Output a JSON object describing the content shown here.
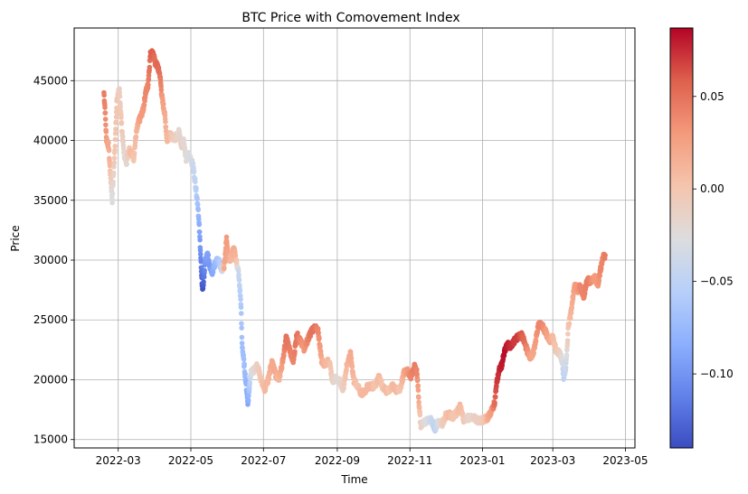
{
  "chart_data": {
    "type": "scatter",
    "title": "BTC Price with Comovement Index",
    "xlabel": "Time",
    "ylabel": "Price",
    "x_type": "date",
    "xlim": [
      "2022-01-23",
      "2023-05-09"
    ],
    "ylim": [
      14300,
      49400
    ],
    "grid": true,
    "x_ticks": [
      {
        "value": "2022-03-01",
        "label": "2022-03"
      },
      {
        "value": "2022-05-01",
        "label": "2022-05"
      },
      {
        "value": "2022-07-01",
        "label": "2022-07"
      },
      {
        "value": "2022-09-01",
        "label": "2022-09"
      },
      {
        "value": "2022-11-01",
        "label": "2022-11"
      },
      {
        "value": "2023-01-01",
        "label": "2023-01"
      },
      {
        "value": "2023-03-01",
        "label": "2023-03"
      },
      {
        "value": "2023-05-01",
        "label": "2023-05"
      }
    ],
    "y_ticks": [
      {
        "value": 15000,
        "label": "15000"
      },
      {
        "value": 20000,
        "label": "20000"
      },
      {
        "value": 25000,
        "label": "25000"
      },
      {
        "value": 30000,
        "label": "30000"
      },
      {
        "value": 35000,
        "label": "35000"
      },
      {
        "value": 40000,
        "label": "40000"
      },
      {
        "value": 45000,
        "label": "45000"
      }
    ],
    "colorbar": {
      "colormap": "coolwarm",
      "range": [
        -0.14,
        0.087
      ],
      "ticks": [
        {
          "value": 0.05,
          "label": "0.05"
        },
        {
          "value": 0.0,
          "label": "0.00"
        },
        {
          "value": -0.05,
          "label": "−0.05"
        },
        {
          "value": -0.1,
          "label": "−0.10"
        }
      ]
    },
    "points": [
      {
        "date": "2022-02-17",
        "price": 44000,
        "c": 0.045
      },
      {
        "date": "2022-02-18",
        "price": 42500,
        "c": 0.04
      },
      {
        "date": "2022-02-19",
        "price": 40200,
        "c": 0.03
      },
      {
        "date": "2022-02-21",
        "price": 39500,
        "c": 0.02
      },
      {
        "date": "2022-02-22",
        "price": 37800,
        "c": 0.01
      },
      {
        "date": "2022-02-24",
        "price": 35000,
        "c": -0.03
      },
      {
        "date": "2022-02-26",
        "price": 39000,
        "c": 0.0
      },
      {
        "date": "2022-02-28",
        "price": 43500,
        "c": 0.0
      },
      {
        "date": "2022-03-02",
        "price": 44200,
        "c": -0.01
      },
      {
        "date": "2022-03-04",
        "price": 41000,
        "c": 0.0
      },
      {
        "date": "2022-03-06",
        "price": 38800,
        "c": -0.02
      },
      {
        "date": "2022-03-08",
        "price": 38200,
        "c": -0.02
      },
      {
        "date": "2022-03-10",
        "price": 39300,
        "c": 0.0
      },
      {
        "date": "2022-03-12",
        "price": 39000,
        "c": 0.01
      },
      {
        "date": "2022-03-14",
        "price": 38500,
        "c": 0.0
      },
      {
        "date": "2022-03-16",
        "price": 40500,
        "c": 0.01
      },
      {
        "date": "2022-03-18",
        "price": 41500,
        "c": 0.02
      },
      {
        "date": "2022-03-20",
        "price": 42000,
        "c": 0.03
      },
      {
        "date": "2022-03-22",
        "price": 42600,
        "c": 0.03
      },
      {
        "date": "2022-03-24",
        "price": 44000,
        "c": 0.04
      },
      {
        "date": "2022-03-26",
        "price": 44600,
        "c": 0.04
      },
      {
        "date": "2022-03-28",
        "price": 47200,
        "c": 0.055
      },
      {
        "date": "2022-03-30",
        "price": 47400,
        "c": 0.06
      },
      {
        "date": "2022-04-01",
        "price": 46500,
        "c": 0.05
      },
      {
        "date": "2022-04-03",
        "price": 46200,
        "c": 0.055
      },
      {
        "date": "2022-04-05",
        "price": 45500,
        "c": 0.05
      },
      {
        "date": "2022-04-07",
        "price": 43400,
        "c": 0.03
      },
      {
        "date": "2022-04-09",
        "price": 42300,
        "c": 0.02
      },
      {
        "date": "2022-04-11",
        "price": 40000,
        "c": 0.01
      },
      {
        "date": "2022-04-13",
        "price": 40500,
        "c": 0.01
      },
      {
        "date": "2022-04-15",
        "price": 40300,
        "c": 0.0
      },
      {
        "date": "2022-04-18",
        "price": 40200,
        "c": -0.01
      },
      {
        "date": "2022-04-21",
        "price": 40800,
        "c": -0.02
      },
      {
        "date": "2022-04-23",
        "price": 39500,
        "c": -0.01
      },
      {
        "date": "2022-04-25",
        "price": 40000,
        "c": -0.02
      },
      {
        "date": "2022-04-27",
        "price": 38500,
        "c": -0.02
      },
      {
        "date": "2022-04-29",
        "price": 38800,
        "c": -0.03
      },
      {
        "date": "2022-05-01",
        "price": 38500,
        "c": -0.03
      },
      {
        "date": "2022-05-03",
        "price": 37800,
        "c": -0.04
      },
      {
        "date": "2022-05-05",
        "price": 36200,
        "c": -0.05
      },
      {
        "date": "2022-05-07",
        "price": 34500,
        "c": -0.07
      },
      {
        "date": "2022-05-09",
        "price": 31000,
        "c": -0.1
      },
      {
        "date": "2022-05-10",
        "price": 28500,
        "c": -0.12
      },
      {
        "date": "2022-05-11",
        "price": 27500,
        "c": -0.14
      },
      {
        "date": "2022-05-13",
        "price": 29800,
        "c": -0.1
      },
      {
        "date": "2022-05-15",
        "price": 30500,
        "c": -0.09
      },
      {
        "date": "2022-05-17",
        "price": 29500,
        "c": -0.1
      },
      {
        "date": "2022-05-19",
        "price": 29000,
        "c": -0.09
      },
      {
        "date": "2022-05-21",
        "price": 29600,
        "c": -0.08
      },
      {
        "date": "2022-05-23",
        "price": 30000,
        "c": -0.07
      },
      {
        "date": "2022-05-25",
        "price": 29800,
        "c": -0.06
      },
      {
        "date": "2022-05-27",
        "price": 29200,
        "c": -0.05
      },
      {
        "date": "2022-05-29",
        "price": 29500,
        "c": 0.02
      },
      {
        "date": "2022-05-31",
        "price": 31800,
        "c": 0.03
      },
      {
        "date": "2022-06-02",
        "price": 30000,
        "c": 0.02
      },
      {
        "date": "2022-06-04",
        "price": 30200,
        "c": 0.01
      },
      {
        "date": "2022-06-06",
        "price": 31000,
        "c": 0.02
      },
      {
        "date": "2022-06-08",
        "price": 30000,
        "c": 0.01
      },
      {
        "date": "2022-06-10",
        "price": 29000,
        "c": -0.04
      },
      {
        "date": "2022-06-12",
        "price": 26500,
        "c": -0.06
      },
      {
        "date": "2022-06-13",
        "price": 23000,
        "c": -0.07
      },
      {
        "date": "2022-06-15",
        "price": 21000,
        "c": -0.07
      },
      {
        "date": "2022-06-18",
        "price": 18000,
        "c": -0.09
      },
      {
        "date": "2022-06-20",
        "price": 20500,
        "c": -0.04
      },
      {
        "date": "2022-06-23",
        "price": 20800,
        "c": -0.02
      },
      {
        "date": "2022-06-26",
        "price": 21200,
        "c": -0.01
      },
      {
        "date": "2022-06-29",
        "price": 20000,
        "c": 0.0
      },
      {
        "date": "2022-07-02",
        "price": 19200,
        "c": 0.01
      },
      {
        "date": "2022-07-05",
        "price": 20000,
        "c": 0.01
      },
      {
        "date": "2022-07-08",
        "price": 21500,
        "c": 0.02
      },
      {
        "date": "2022-07-11",
        "price": 20500,
        "c": 0.02
      },
      {
        "date": "2022-07-14",
        "price": 20000,
        "c": 0.01
      },
      {
        "date": "2022-07-17",
        "price": 21500,
        "c": 0.03
      },
      {
        "date": "2022-07-20",
        "price": 23500,
        "c": 0.05
      },
      {
        "date": "2022-07-23",
        "price": 22500,
        "c": 0.045
      },
      {
        "date": "2022-07-26",
        "price": 21500,
        "c": 0.04
      },
      {
        "date": "2022-07-29",
        "price": 23800,
        "c": 0.05
      },
      {
        "date": "2022-08-01",
        "price": 23200,
        "c": 0.04
      },
      {
        "date": "2022-08-04",
        "price": 22600,
        "c": 0.03
      },
      {
        "date": "2022-08-07",
        "price": 23300,
        "c": 0.04
      },
      {
        "date": "2022-08-10",
        "price": 24000,
        "c": 0.05
      },
      {
        "date": "2022-08-13",
        "price": 24400,
        "c": 0.05
      },
      {
        "date": "2022-08-16",
        "price": 24000,
        "c": 0.04
      },
      {
        "date": "2022-08-19",
        "price": 21500,
        "c": 0.02
      },
      {
        "date": "2022-08-22",
        "price": 21300,
        "c": 0.01
      },
      {
        "date": "2022-08-25",
        "price": 21600,
        "c": 0.01
      },
      {
        "date": "2022-08-28",
        "price": 20000,
        "c": -0.01
      },
      {
        "date": "2022-08-31",
        "price": 20100,
        "c": -0.02
      },
      {
        "date": "2022-09-03",
        "price": 19900,
        "c": -0.02
      },
      {
        "date": "2022-09-06",
        "price": 19200,
        "c": -0.01
      },
      {
        "date": "2022-09-09",
        "price": 21200,
        "c": 0.01
      },
      {
        "date": "2022-09-12",
        "price": 22200,
        "c": 0.02
      },
      {
        "date": "2022-09-15",
        "price": 19900,
        "c": 0.01
      },
      {
        "date": "2022-09-18",
        "price": 19500,
        "c": 0.0
      },
      {
        "date": "2022-09-21",
        "price": 18800,
        "c": 0.01
      },
      {
        "date": "2022-09-24",
        "price": 19000,
        "c": 0.01
      },
      {
        "date": "2022-09-27",
        "price": 19500,
        "c": 0.01
      },
      {
        "date": "2022-09-30",
        "price": 19400,
        "c": 0.01
      },
      {
        "date": "2022-10-03",
        "price": 19600,
        "c": 0.0
      },
      {
        "date": "2022-10-06",
        "price": 20200,
        "c": 0.01
      },
      {
        "date": "2022-10-09",
        "price": 19400,
        "c": 0.0
      },
      {
        "date": "2022-10-12",
        "price": 19100,
        "c": 0.01
      },
      {
        "date": "2022-10-15",
        "price": 19200,
        "c": 0.0
      },
      {
        "date": "2022-10-18",
        "price": 19500,
        "c": 0.01
      },
      {
        "date": "2022-10-21",
        "price": 19100,
        "c": 0.01
      },
      {
        "date": "2022-10-24",
        "price": 19300,
        "c": 0.0
      },
      {
        "date": "2022-10-27",
        "price": 20600,
        "c": 0.02
      },
      {
        "date": "2022-10-30",
        "price": 20700,
        "c": 0.03
      },
      {
        "date": "2022-11-02",
        "price": 20300,
        "c": 0.04
      },
      {
        "date": "2022-11-05",
        "price": 21100,
        "c": 0.045
      },
      {
        "date": "2022-11-07",
        "price": 20600,
        "c": 0.04
      },
      {
        "date": "2022-11-09",
        "price": 17500,
        "c": 0.01
      },
      {
        "date": "2022-11-10",
        "price": 16200,
        "c": -0.01
      },
      {
        "date": "2022-11-13",
        "price": 16400,
        "c": -0.02
      },
      {
        "date": "2022-11-16",
        "price": 16700,
        "c": -0.03
      },
      {
        "date": "2022-11-19",
        "price": 16600,
        "c": -0.04
      },
      {
        "date": "2022-11-22",
        "price": 15900,
        "c": -0.05
      },
      {
        "date": "2022-11-25",
        "price": 16500,
        "c": -0.03
      },
      {
        "date": "2022-11-28",
        "price": 16300,
        "c": -0.01
      },
      {
        "date": "2022-12-01",
        "price": 17000,
        "c": 0.0
      },
      {
        "date": "2022-12-04",
        "price": 17100,
        "c": 0.01
      },
      {
        "date": "2022-12-07",
        "price": 16900,
        "c": 0.0
      },
      {
        "date": "2022-12-10",
        "price": 17200,
        "c": 0.0
      },
      {
        "date": "2022-12-13",
        "price": 17800,
        "c": 0.01
      },
      {
        "date": "2022-12-16",
        "price": 16700,
        "c": 0.0
      },
      {
        "date": "2022-12-19",
        "price": 16800,
        "c": -0.01
      },
      {
        "date": "2022-12-22",
        "price": 16800,
        "c": -0.02
      },
      {
        "date": "2022-12-25",
        "price": 16800,
        "c": -0.01
      },
      {
        "date": "2022-12-28",
        "price": 16600,
        "c": -0.01
      },
      {
        "date": "2022-12-31",
        "price": 16600,
        "c": -0.01
      },
      {
        "date": "2023-01-03",
        "price": 16700,
        "c": 0.0
      },
      {
        "date": "2023-01-06",
        "price": 16900,
        "c": 0.02
      },
      {
        "date": "2023-01-09",
        "price": 17500,
        "c": 0.03
      },
      {
        "date": "2023-01-11",
        "price": 18000,
        "c": 0.05
      },
      {
        "date": "2023-01-13",
        "price": 19800,
        "c": 0.07
      },
      {
        "date": "2023-01-15",
        "price": 20800,
        "c": 0.075
      },
      {
        "date": "2023-01-17",
        "price": 21200,
        "c": 0.08
      },
      {
        "date": "2023-01-20",
        "price": 22500,
        "c": 0.085
      },
      {
        "date": "2023-01-22",
        "price": 22900,
        "c": 0.08
      },
      {
        "date": "2023-01-25",
        "price": 22800,
        "c": 0.075
      },
      {
        "date": "2023-01-28",
        "price": 23300,
        "c": 0.07
      },
      {
        "date": "2023-01-31",
        "price": 23600,
        "c": 0.07
      },
      {
        "date": "2023-02-03",
        "price": 23700,
        "c": 0.06
      },
      {
        "date": "2023-02-06",
        "price": 22900,
        "c": 0.05
      },
      {
        "date": "2023-02-09",
        "price": 22000,
        "c": 0.03
      },
      {
        "date": "2023-02-12",
        "price": 21900,
        "c": 0.02
      },
      {
        "date": "2023-02-15",
        "price": 23500,
        "c": 0.03
      },
      {
        "date": "2023-02-17",
        "price": 24600,
        "c": 0.04
      },
      {
        "date": "2023-02-20",
        "price": 24500,
        "c": 0.04
      },
      {
        "date": "2023-02-23",
        "price": 24000,
        "c": 0.03
      },
      {
        "date": "2023-02-26",
        "price": 23200,
        "c": 0.02
      },
      {
        "date": "2023-03-01",
        "price": 23600,
        "c": 0.01
      },
      {
        "date": "2023-03-04",
        "price": 22400,
        "c": 0.0
      },
      {
        "date": "2023-03-07",
        "price": 22200,
        "c": -0.01
      },
      {
        "date": "2023-03-09",
        "price": 21500,
        "c": -0.03
      },
      {
        "date": "2023-03-10",
        "price": 20200,
        "c": -0.05
      },
      {
        "date": "2023-03-12",
        "price": 21000,
        "c": -0.04
      },
      {
        "date": "2023-03-13",
        "price": 22500,
        "c": -0.02
      },
      {
        "date": "2023-03-14",
        "price": 24500,
        "c": 0.0
      },
      {
        "date": "2023-03-16",
        "price": 25500,
        "c": 0.01
      },
      {
        "date": "2023-03-18",
        "price": 27000,
        "c": 0.02
      },
      {
        "date": "2023-03-20",
        "price": 28000,
        "c": 0.03
      },
      {
        "date": "2023-03-22",
        "price": 27500,
        "c": 0.03
      },
      {
        "date": "2023-03-24",
        "price": 27800,
        "c": 0.04
      },
      {
        "date": "2023-03-27",
        "price": 27000,
        "c": 0.04
      },
      {
        "date": "2023-03-30",
        "price": 28400,
        "c": 0.045
      },
      {
        "date": "2023-04-02",
        "price": 28200,
        "c": 0.04
      },
      {
        "date": "2023-04-05",
        "price": 28500,
        "c": 0.03
      },
      {
        "date": "2023-04-08",
        "price": 28000,
        "c": 0.03
      },
      {
        "date": "2023-04-10",
        "price": 29200,
        "c": 0.04
      },
      {
        "date": "2023-04-12",
        "price": 30200,
        "c": 0.04
      },
      {
        "date": "2023-04-14",
        "price": 30400,
        "c": 0.045
      }
    ]
  }
}
